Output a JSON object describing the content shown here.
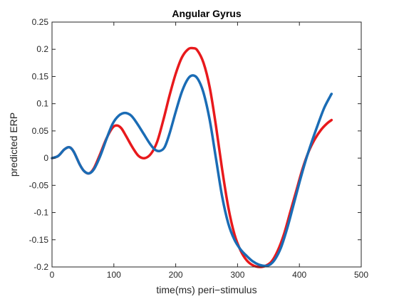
{
  "chart_data": {
    "type": "line",
    "title": "Angular Gyrus",
    "xlabel": "time(ms) peri−stimulus",
    "ylabel": "predicted ERP",
    "xlim": [
      0,
      500
    ],
    "ylim": [
      -0.2,
      0.25
    ],
    "xticks": [
      0,
      100,
      200,
      300,
      400,
      500
    ],
    "yticks": [
      -0.2,
      -0.15,
      -0.1,
      -0.05,
      0,
      0.05,
      0.1,
      0.15,
      0.2,
      0.25
    ],
    "xtick_labels": [
      "0",
      "100",
      "200",
      "300",
      "400",
      "500"
    ],
    "ytick_labels": [
      "-0.2",
      "-0.15",
      "-0.1",
      "-0.05",
      "0",
      "0.05",
      "0.1",
      "0.15",
      "0.2",
      "0.25"
    ],
    "grid": false,
    "series": [
      {
        "color": "#e8191c",
        "points": [
          [
            0,
            0
          ],
          [
            10,
            0.004
          ],
          [
            20,
            0.016
          ],
          [
            28,
            0.02
          ],
          [
            35,
            0.012
          ],
          [
            45,
            -0.012
          ],
          [
            52,
            -0.024
          ],
          [
            60,
            -0.028
          ],
          [
            68,
            -0.018
          ],
          [
            78,
            0.008
          ],
          [
            88,
            0.036
          ],
          [
            98,
            0.056
          ],
          [
            105,
            0.06
          ],
          [
            112,
            0.055
          ],
          [
            120,
            0.04
          ],
          [
            130,
            0.02
          ],
          [
            140,
            0.004
          ],
          [
            150,
            0.0
          ],
          [
            160,
            0.008
          ],
          [
            170,
            0.03
          ],
          [
            180,
            0.07
          ],
          [
            190,
            0.115
          ],
          [
            200,
            0.155
          ],
          [
            210,
            0.185
          ],
          [
            220,
            0.2
          ],
          [
            228,
            0.202
          ],
          [
            235,
            0.198
          ],
          [
            245,
            0.175
          ],
          [
            255,
            0.13
          ],
          [
            265,
            0.06
          ],
          [
            275,
            -0.02
          ],
          [
            285,
            -0.09
          ],
          [
            295,
            -0.14
          ],
          [
            305,
            -0.17
          ],
          [
            315,
            -0.188
          ],
          [
            325,
            -0.197
          ],
          [
            335,
            -0.2
          ],
          [
            345,
            -0.198
          ],
          [
            355,
            -0.19
          ],
          [
            365,
            -0.17
          ],
          [
            375,
            -0.14
          ],
          [
            385,
            -0.1
          ],
          [
            395,
            -0.06
          ],
          [
            405,
            -0.02
          ],
          [
            415,
            0.012
          ],
          [
            425,
            0.035
          ],
          [
            435,
            0.052
          ],
          [
            445,
            0.064
          ],
          [
            452,
            0.07
          ]
        ]
      },
      {
        "color": "#1a6cb5",
        "points": [
          [
            0,
            0
          ],
          [
            10,
            0.004
          ],
          [
            20,
            0.016
          ],
          [
            28,
            0.02
          ],
          [
            35,
            0.012
          ],
          [
            45,
            -0.012
          ],
          [
            52,
            -0.024
          ],
          [
            60,
            -0.028
          ],
          [
            68,
            -0.02
          ],
          [
            78,
            0.004
          ],
          [
            88,
            0.035
          ],
          [
            98,
            0.063
          ],
          [
            108,
            0.078
          ],
          [
            118,
            0.083
          ],
          [
            128,
            0.078
          ],
          [
            138,
            0.063
          ],
          [
            148,
            0.045
          ],
          [
            158,
            0.027
          ],
          [
            166,
            0.016
          ],
          [
            174,
            0.013
          ],
          [
            182,
            0.02
          ],
          [
            190,
            0.045
          ],
          [
            200,
            0.085
          ],
          [
            210,
            0.122
          ],
          [
            220,
            0.146
          ],
          [
            228,
            0.152
          ],
          [
            236,
            0.145
          ],
          [
            245,
            0.12
          ],
          [
            255,
            0.07
          ],
          [
            265,
            0.0
          ],
          [
            275,
            -0.07
          ],
          [
            285,
            -0.12
          ],
          [
            295,
            -0.15
          ],
          [
            305,
            -0.168
          ],
          [
            315,
            -0.18
          ],
          [
            325,
            -0.19
          ],
          [
            335,
            -0.196
          ],
          [
            345,
            -0.198
          ],
          [
            352,
            -0.196
          ],
          [
            360,
            -0.187
          ],
          [
            370,
            -0.165
          ],
          [
            380,
            -0.13
          ],
          [
            390,
            -0.088
          ],
          [
            400,
            -0.045
          ],
          [
            410,
            -0.005
          ],
          [
            420,
            0.03
          ],
          [
            430,
            0.062
          ],
          [
            440,
            0.092
          ],
          [
            450,
            0.114
          ],
          [
            452,
            0.118
          ]
        ]
      }
    ]
  }
}
